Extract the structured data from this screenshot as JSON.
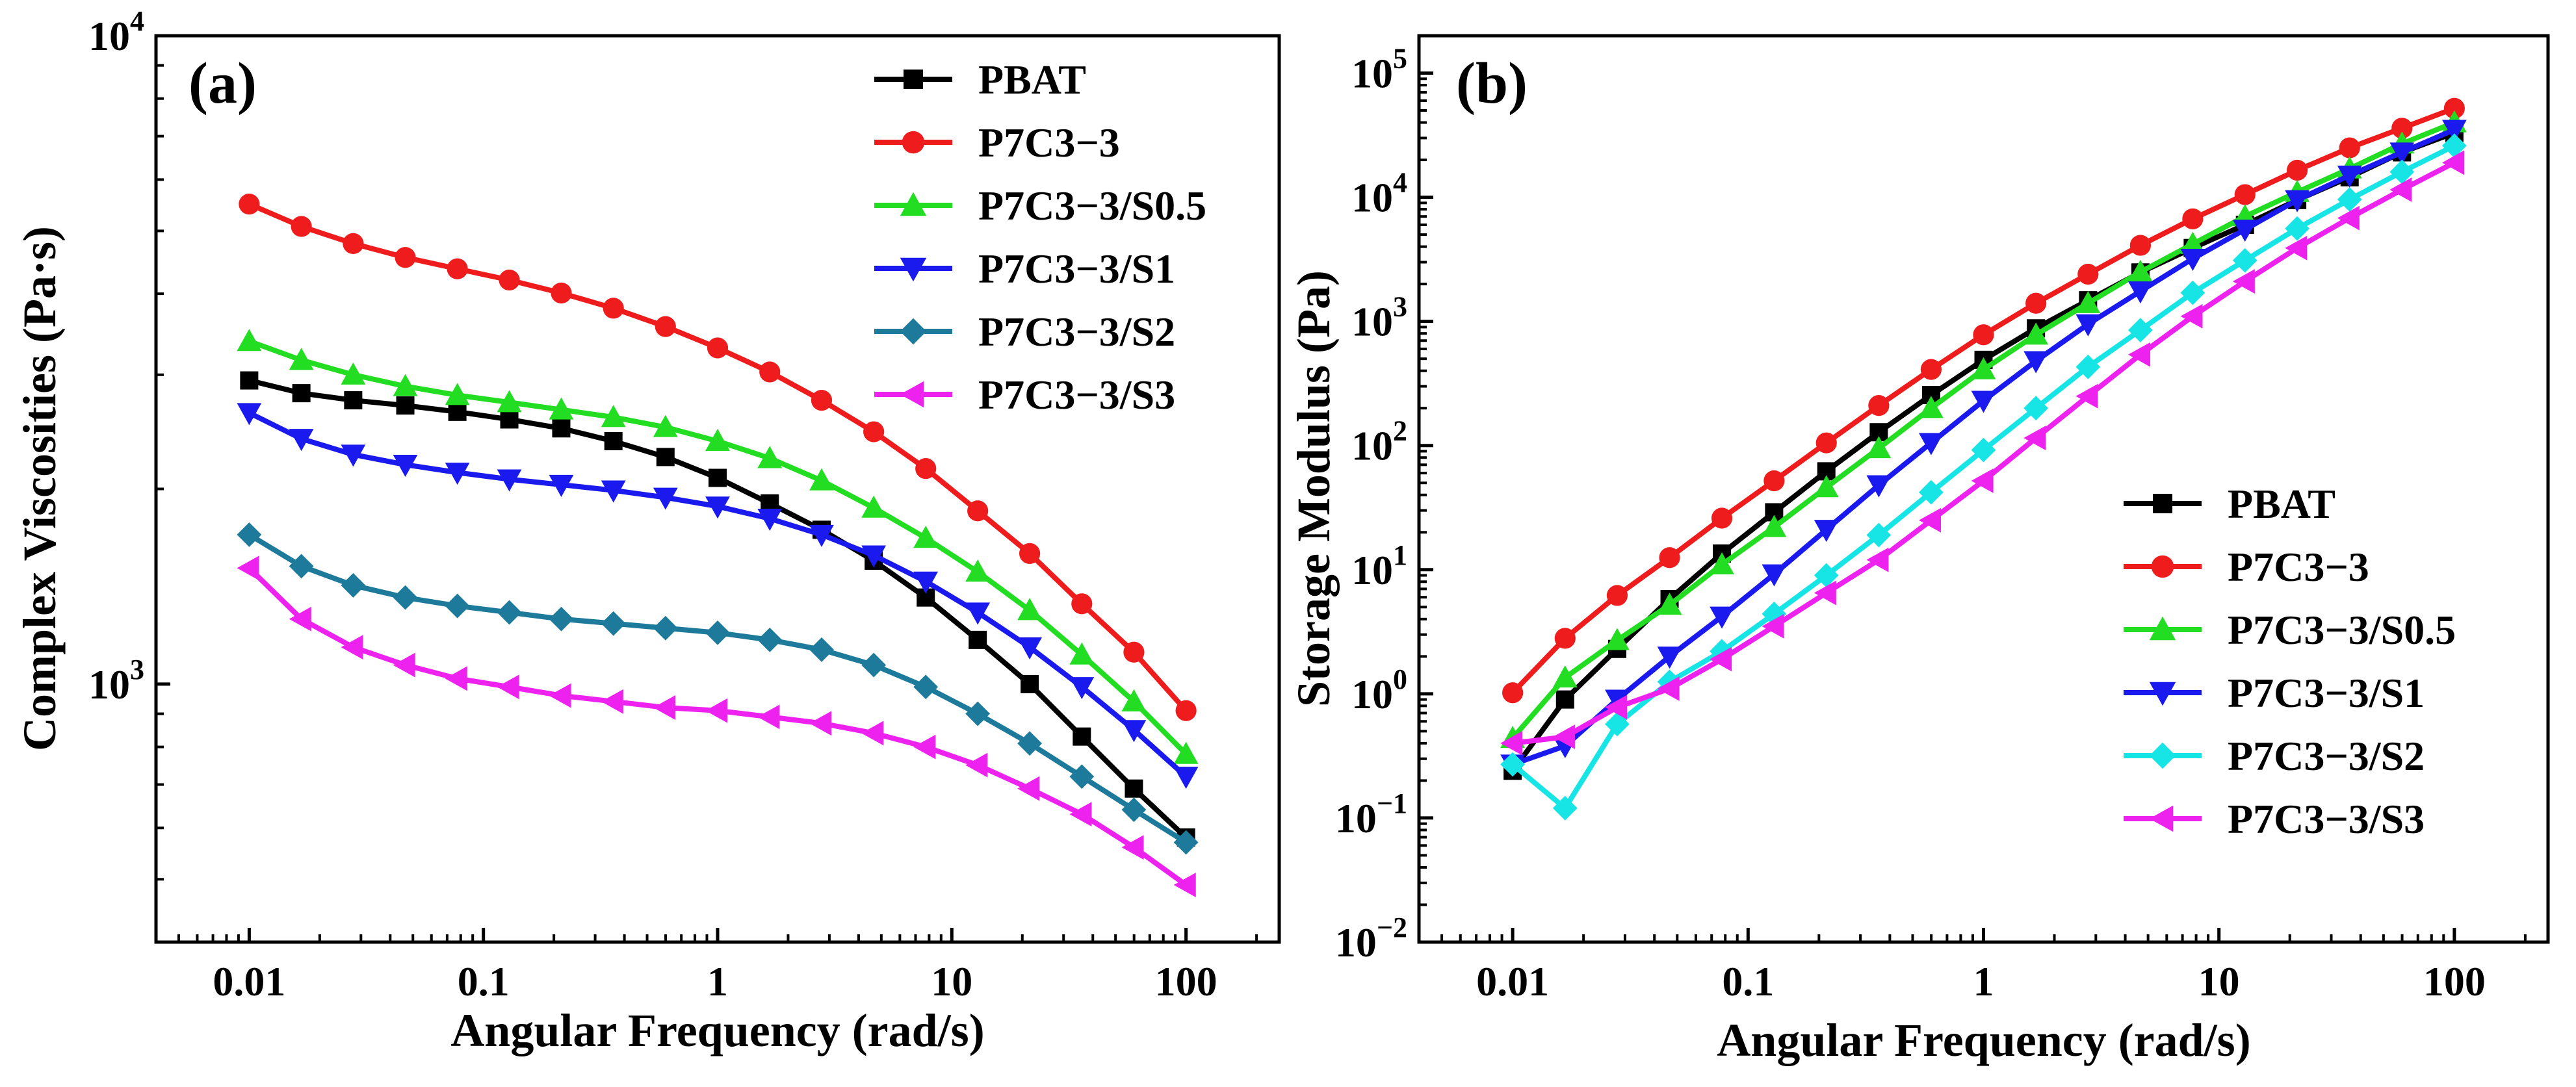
{
  "chart_data": [
    {
      "panel_label": "(a)",
      "type": "line",
      "xscale": "log",
      "yscale": "log",
      "xlabel": "Angular Frequency (rad/s)",
      "ylabel": "Complex Viscosities (Pa·s)",
      "xlim": [
        0.004,
        250
      ],
      "ylim": [
        400,
        10000
      ],
      "xticks": [
        {
          "value": 0.01,
          "label": "0.01"
        },
        {
          "value": 0.1,
          "label": "0.1"
        },
        {
          "value": 1,
          "label": "1"
        },
        {
          "value": 10,
          "label": "10"
        },
        {
          "value": 100,
          "label": "100"
        }
      ],
      "yticks": [
        {
          "value": 1000,
          "base": "10",
          "exp": "3"
        },
        {
          "value": 10000,
          "base": "10",
          "exp": "4"
        }
      ],
      "legend_position": "top-right",
      "x": [
        0.01,
        0.0167,
        0.0278,
        0.0464,
        0.0774,
        0.129,
        0.215,
        0.359,
        0.599,
        1,
        1.67,
        2.78,
        4.64,
        7.74,
        12.9,
        21.5,
        35.9,
        59.9,
        100
      ],
      "series": [
        {
          "name": "PBAT",
          "color": "#000000",
          "marker": "square",
          "values": [
            2940,
            2810,
            2740,
            2690,
            2630,
            2560,
            2480,
            2370,
            2240,
            2080,
            1900,
            1730,
            1550,
            1360,
            1170,
            1000,
            830,
            690,
            580
          ]
        },
        {
          "name": "P7C3−3",
          "color": "#ee1c1c",
          "marker": "circle",
          "values": [
            5500,
            5080,
            4780,
            4550,
            4370,
            4200,
            4010,
            3800,
            3560,
            3300,
            3030,
            2740,
            2450,
            2150,
            1850,
            1590,
            1330,
            1120,
            910
          ]
        },
        {
          "name": "P7C3−3/S0.5",
          "color": "#22dd22",
          "marker": "triangle-up",
          "values": [
            3380,
            3160,
            3000,
            2880,
            2790,
            2720,
            2650,
            2580,
            2490,
            2370,
            2230,
            2060,
            1870,
            1680,
            1490,
            1300,
            1110,
            940,
            780
          ]
        },
        {
          "name": "P7C3−3/S1",
          "color": "#1a1aee",
          "marker": "triangle-down",
          "values": [
            2620,
            2390,
            2260,
            2180,
            2120,
            2070,
            2030,
            1990,
            1940,
            1880,
            1800,
            1700,
            1580,
            1440,
            1290,
            1140,
            990,
            850,
            720
          ]
        },
        {
          "name": "P7C3−3/S2",
          "color": "#1d7a9a",
          "marker": "diamond",
          "values": [
            1700,
            1520,
            1420,
            1360,
            1320,
            1290,
            1260,
            1240,
            1220,
            1200,
            1170,
            1130,
            1070,
            990,
            900,
            810,
            720,
            640,
            570
          ]
        },
        {
          "name": "P7C3−3/S3",
          "color": "#ee22ee",
          "marker": "triangle-left",
          "values": [
            1510,
            1260,
            1140,
            1070,
            1020,
            990,
            960,
            940,
            920,
            910,
            890,
            870,
            840,
            800,
            750,
            690,
            630,
            560,
            490
          ]
        }
      ]
    },
    {
      "panel_label": "(b)",
      "type": "line",
      "xscale": "log",
      "yscale": "log",
      "xlabel": "Angular Frequency (rad/s)",
      "ylabel": "Storage Modulus (Pa)",
      "xlim": [
        0.004,
        250
      ],
      "ylim": [
        0.01,
        200000
      ],
      "xticks": [
        {
          "value": 0.01,
          "label": "0.01"
        },
        {
          "value": 0.1,
          "label": "0.1"
        },
        {
          "value": 1,
          "label": "1"
        },
        {
          "value": 10,
          "label": "10"
        },
        {
          "value": 100,
          "label": "100"
        }
      ],
      "yticks": [
        {
          "value": 0.01,
          "base": "10",
          "exp": "−2"
        },
        {
          "value": 0.1,
          "base": "10",
          "exp": "−1"
        },
        {
          "value": 1,
          "base": "10",
          "exp": "0"
        },
        {
          "value": 10,
          "base": "10",
          "exp": "1"
        },
        {
          "value": 100,
          "base": "10",
          "exp": "2"
        },
        {
          "value": 1000,
          "base": "10",
          "exp": "3"
        },
        {
          "value": 10000,
          "base": "10",
          "exp": "4"
        },
        {
          "value": 100000,
          "base": "10",
          "exp": "5"
        }
      ],
      "legend_position": "bottom-right",
      "x": [
        0.01,
        0.0167,
        0.0278,
        0.0464,
        0.0774,
        0.129,
        0.215,
        0.359,
        0.599,
        1,
        1.67,
        2.78,
        4.64,
        7.74,
        12.9,
        21.5,
        35.9,
        59.9,
        100
      ],
      "series": [
        {
          "name": "PBAT",
          "color": "#000000",
          "marker": "square",
          "values": [
            0.24,
            0.9,
            2.3,
            5.8,
            13.5,
            29,
            62,
            128,
            255,
            490,
            880,
            1480,
            2480,
            3900,
            6000,
            9500,
            14500,
            23000,
            33000
          ]
        },
        {
          "name": "P7C3−3",
          "color": "#ee1c1c",
          "marker": "circle",
          "values": [
            1.02,
            2.8,
            6.2,
            12.5,
            26,
            52,
            105,
            210,
            410,
            780,
            1400,
            2400,
            4100,
            6700,
            10500,
            16500,
            25000,
            36000,
            52000
          ]
        },
        {
          "name": "P7C3−3/S0.5",
          "color": "#22dd22",
          "marker": "triangle-up",
          "values": [
            0.44,
            1.35,
            2.7,
            5.2,
            11,
            22,
            46,
            95,
            200,
            410,
            780,
            1400,
            2500,
            4200,
            7000,
            11000,
            17000,
            27000,
            40000
          ]
        },
        {
          "name": "P7C3−3/S1",
          "color": "#1a1aee",
          "marker": "triangle-down",
          "values": [
            0.27,
            0.38,
            0.9,
            2.0,
            4.2,
            9.2,
            21,
            48,
            105,
            230,
            480,
            950,
            1750,
            3200,
            5500,
            9500,
            15000,
            23000,
            35000
          ]
        },
        {
          "name": "P7C3−3/S2",
          "color": "#17e5e5",
          "marker": "diamond",
          "values": [
            0.27,
            0.12,
            0.57,
            1.25,
            2.2,
            4.4,
            9,
            19,
            42,
            92,
            200,
            430,
            850,
            1700,
            3100,
            5600,
            9600,
            16000,
            26000
          ]
        },
        {
          "name": "P7C3−3/S3",
          "color": "#ee22ee",
          "marker": "triangle-left",
          "values": [
            0.4,
            0.45,
            0.78,
            1.1,
            1.9,
            3.5,
            6.5,
            12,
            25,
            52,
            115,
            250,
            540,
            1100,
            2100,
            3900,
            6800,
            11500,
            19000
          ]
        }
      ]
    }
  ]
}
